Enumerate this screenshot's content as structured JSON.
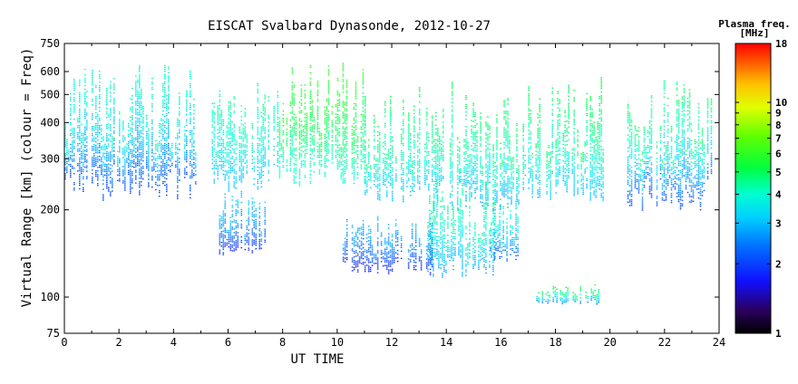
{
  "chart_data": {
    "type": "heatmap",
    "title": "EISCAT Svalbard Dynasonde, 2012-10-27",
    "xlabel": "UT TIME",
    "ylabel": "Virtual Range [km] (colour = Freq)",
    "x_range": [
      0,
      24
    ],
    "y_range": [
      75,
      750
    ],
    "y_scale": "log",
    "x_ticks": [
      "0",
      "2",
      "4",
      "6",
      "8",
      "10",
      "12",
      "14",
      "16",
      "18",
      "20",
      "22",
      "24"
    ],
    "y_ticks": [
      "75",
      "100",
      "200",
      "300",
      "400",
      "500",
      "600",
      "750"
    ],
    "colorbar": {
      "title_line1": "Plasma freq.",
      "title_line2": "[MHz]",
      "range": [
        1,
        18
      ],
      "scale": "log",
      "ticks": [
        "1",
        "2",
        "3",
        "4",
        "5",
        "6",
        "7",
        "8",
        "9",
        "10",
        "18"
      ]
    },
    "echo_regions": [
      {
        "t0": 0.0,
        "t1": 4.8,
        "h0": 215,
        "h1": 660,
        "f_low": 2.0,
        "f_high": 4.2
      },
      {
        "t0": 5.4,
        "t1": 7.8,
        "h0": 230,
        "h1": 560,
        "f_low": 3.0,
        "f_high": 4.5
      },
      {
        "t0": 7.8,
        "t1": 11.0,
        "h0": 240,
        "h1": 660,
        "f_low": 3.8,
        "f_high": 6.0
      },
      {
        "t0": 11.0,
        "t1": 14.5,
        "h0": 200,
        "h1": 560,
        "f_low": 3.0,
        "f_high": 5.0
      },
      {
        "t0": 14.5,
        "t1": 16.8,
        "h0": 200,
        "h1": 540,
        "f_low": 2.8,
        "f_high": 5.0
      },
      {
        "t0": 16.8,
        "t1": 19.8,
        "h0": 210,
        "h1": 580,
        "f_low": 3.0,
        "f_high": 5.2
      },
      {
        "t0": 20.5,
        "t1": 23.7,
        "h0": 200,
        "h1": 580,
        "f_low": 2.0,
        "f_high": 5.0
      },
      {
        "t0": 5.6,
        "t1": 7.4,
        "h0": 135,
        "h1": 235,
        "f_low": 1.8,
        "f_high": 3.2
      },
      {
        "t0": 10.2,
        "t1": 13.5,
        "h0": 120,
        "h1": 195,
        "f_low": 1.7,
        "f_high": 3.0
      },
      {
        "t0": 13.3,
        "t1": 15.8,
        "h0": 115,
        "h1": 260,
        "f_low": 2.8,
        "f_high": 4.6
      },
      {
        "t0": 15.6,
        "t1": 16.6,
        "h0": 130,
        "h1": 220,
        "f_low": 2.2,
        "f_high": 4.0
      },
      {
        "t0": 17.3,
        "t1": 19.6,
        "h0": 95,
        "h1": 112,
        "f_low": 2.5,
        "f_high": 5.5
      }
    ]
  }
}
